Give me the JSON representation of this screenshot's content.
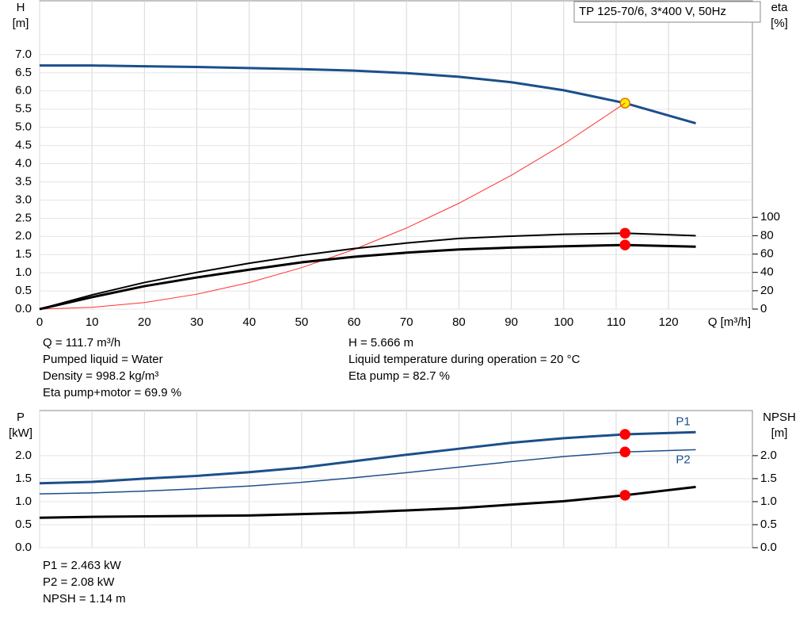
{
  "chart_data": [
    {
      "type": "line",
      "title": "TP 125-70/6, 3*400 V, 50Hz",
      "xlabel": "Q [m³/h]",
      "ylabel": "H",
      "yunit": "[m]",
      "y2label": "eta",
      "y2unit": "[%]",
      "xlim": [
        0,
        136
      ],
      "xticks": [
        0,
        10,
        20,
        30,
        40,
        50,
        60,
        70,
        80,
        90,
        100,
        110,
        120
      ],
      "show_xtick_labels": true,
      "ylim": [
        0,
        8.48
      ],
      "yticks": [
        {
          "value": 0,
          "label": "0.0"
        },
        {
          "value": 0.5,
          "label": "0.5"
        },
        {
          "value": 1,
          "label": "1.0"
        },
        {
          "value": 1.5,
          "label": "1.5"
        },
        {
          "value": 2,
          "label": "2.0"
        },
        {
          "value": 2.5,
          "label": "2.5"
        },
        {
          "value": 3,
          "label": "3.0"
        },
        {
          "value": 3.5,
          "label": "3.5"
        },
        {
          "value": 4,
          "label": "4.0"
        },
        {
          "value": 4.5,
          "label": "4.5"
        },
        {
          "value": 5,
          "label": "5.0"
        },
        {
          "value": 5.5,
          "label": "5.5"
        },
        {
          "value": 6,
          "label": "6.0"
        },
        {
          "value": 6.5,
          "label": "6.5"
        },
        {
          "value": 7,
          "label": "7.0"
        }
      ],
      "y2lim": [
        0,
        336
      ],
      "y2ticks": [
        0,
        20,
        40,
        60,
        80,
        100
      ],
      "grid": true,
      "duty_q": 111.7,
      "series": [
        {
          "color": "#1b4f8a",
          "linewidth": 3,
          "marker": "#ffee00",
          "x": [
            0,
            10,
            20,
            30,
            40,
            50,
            60,
            70,
            80,
            90,
            100,
            111.7,
            125.2
          ],
          "values": [
            6.7,
            6.7,
            6.68,
            6.66,
            6.63,
            6.6,
            6.56,
            6.49,
            6.39,
            6.24,
            6.02,
            5.666,
            5.11
          ]
        },
        {
          "color": "#ff3030",
          "linewidth": 1,
          "x": [
            0,
            10,
            20,
            30,
            40,
            50,
            60,
            70,
            80,
            90,
            100,
            110,
            111.7
          ],
          "values": [
            0,
            0.05,
            0.18,
            0.41,
            0.73,
            1.14,
            1.64,
            2.23,
            2.91,
            3.68,
            4.54,
            5.5,
            5.666
          ]
        },
        {
          "color": "#000000",
          "linewidth": 2,
          "axis": "y2",
          "marker": "#ff0000",
          "x": [
            0,
            10,
            20,
            30,
            40,
            50,
            60,
            70,
            80,
            90,
            100,
            111.7,
            125.2
          ],
          "values": [
            0,
            15.5,
            29,
            40,
            50,
            58.6,
            66,
            72,
            77,
            79.5,
            81.5,
            82.7,
            80
          ]
        },
        {
          "color": "#000000",
          "linewidth": 3,
          "axis": "y2",
          "marker": "#ff0000",
          "x": [
            0,
            10,
            20,
            30,
            40,
            50,
            60,
            70,
            80,
            90,
            100,
            111.7,
            125.2
          ],
          "values": [
            0,
            13,
            25,
            34.5,
            43,
            51,
            57,
            61.5,
            65,
            67,
            68.5,
            69.9,
            68
          ]
        }
      ],
      "notes_left": [
        "Q = 111.7 m³/h",
        "Pumped liquid = Water",
        "Density = 998.2 kg/m³",
        "Eta pump+motor = 69.9 %"
      ],
      "notes_right": [
        "H = 5.666 m",
        "Liquid temperature during operation = 20 °C",
        "Eta pump = 82.7 %"
      ]
    },
    {
      "type": "line",
      "ylabel": "P",
      "yunit": "[kW]",
      "y2label": "NPSH",
      "y2unit": "[m]",
      "xlim": [
        0,
        136
      ],
      "xticks": [
        0,
        10,
        20,
        30,
        40,
        50,
        60,
        70,
        80,
        90,
        100,
        110,
        120
      ],
      "show_xtick_labels": false,
      "ylim": [
        0,
        2.98
      ],
      "yticks": [
        {
          "value": 0,
          "label": "0.0"
        },
        {
          "value": 0.5,
          "label": "0.5"
        },
        {
          "value": 1,
          "label": "1.0"
        },
        {
          "value": 1.5,
          "label": "1.5"
        },
        {
          "value": 2,
          "label": "2.0"
        }
      ],
      "y2lim": [
        0,
        2.98
      ],
      "y2ticks": [
        {
          "value": 0,
          "label": "0.0"
        },
        {
          "value": 0.5,
          "label": "0.5"
        },
        {
          "value": 1,
          "label": "1.0"
        },
        {
          "value": 1.5,
          "label": "1.5"
        },
        {
          "value": 2,
          "label": "2.0"
        }
      ],
      "grid": true,
      "duty_q": 111.7,
      "series": [
        {
          "name": "P1",
          "color": "#1b4f8a",
          "linewidth": 3,
          "marker": "#ff0000",
          "x": [
            0,
            10,
            20,
            30,
            40,
            50,
            60,
            70,
            80,
            90,
            100,
            111.7,
            125.2
          ],
          "values": [
            1.4,
            1.43,
            1.5,
            1.56,
            1.64,
            1.74,
            1.88,
            2.02,
            2.15,
            2.28,
            2.38,
            2.463,
            2.51
          ]
        },
        {
          "name": "P2",
          "color": "#1b4f8a",
          "linewidth": 1.5,
          "marker": "#ff0000",
          "x": [
            0,
            10,
            20,
            30,
            40,
            50,
            60,
            70,
            80,
            90,
            100,
            111.7,
            125.2
          ],
          "values": [
            1.17,
            1.19,
            1.23,
            1.28,
            1.34,
            1.42,
            1.52,
            1.63,
            1.75,
            1.87,
            1.98,
            2.08,
            2.13
          ]
        },
        {
          "color": "#000000",
          "linewidth": 3,
          "axis": "y2",
          "marker": "#ff0000",
          "x": [
            0,
            10,
            20,
            40,
            60,
            80,
            100,
            111.7,
            125.2
          ],
          "values": [
            0.65,
            0.67,
            0.68,
            0.7,
            0.76,
            0.86,
            1.01,
            1.14,
            1.32
          ]
        }
      ],
      "notes_left": [
        "P1 = 2.463 kW",
        "P2 = 2.08 kW",
        "NPSH = 1.14 m"
      ]
    }
  ]
}
